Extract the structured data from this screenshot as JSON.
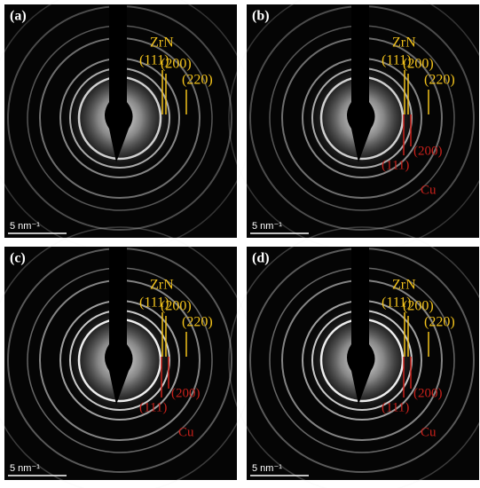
{
  "panels": [
    {
      "label": "(a)",
      "phase": "ZrN",
      "planes": [
        "(111)",
        "(200)",
        "(220)"
      ],
      "scale": "5 nm⁻¹"
    },
    {
      "label": "(b)",
      "phase": "ZrN",
      "planes": [
        "(111)",
        "(200)",
        "(220)"
      ],
      "scale": "5 nm⁻¹",
      "cu": "Cu",
      "cu_planes": [
        "(111)",
        "(200)"
      ]
    },
    {
      "label": "(c)",
      "phase": "ZrN",
      "planes": [
        "(111)",
        "(200)",
        "(220)"
      ],
      "scale": "5 nm⁻¹",
      "cu": "Cu",
      "cu_planes": [
        "(111)",
        "(200)"
      ]
    },
    {
      "label": "(d)",
      "phase": "ZrN",
      "planes": [
        "(111)",
        "(200)",
        "(220)"
      ],
      "scale": "5 nm⁻¹",
      "cu": "Cu",
      "cu_planes": [
        "(111)",
        "(200)"
      ]
    }
  ]
}
